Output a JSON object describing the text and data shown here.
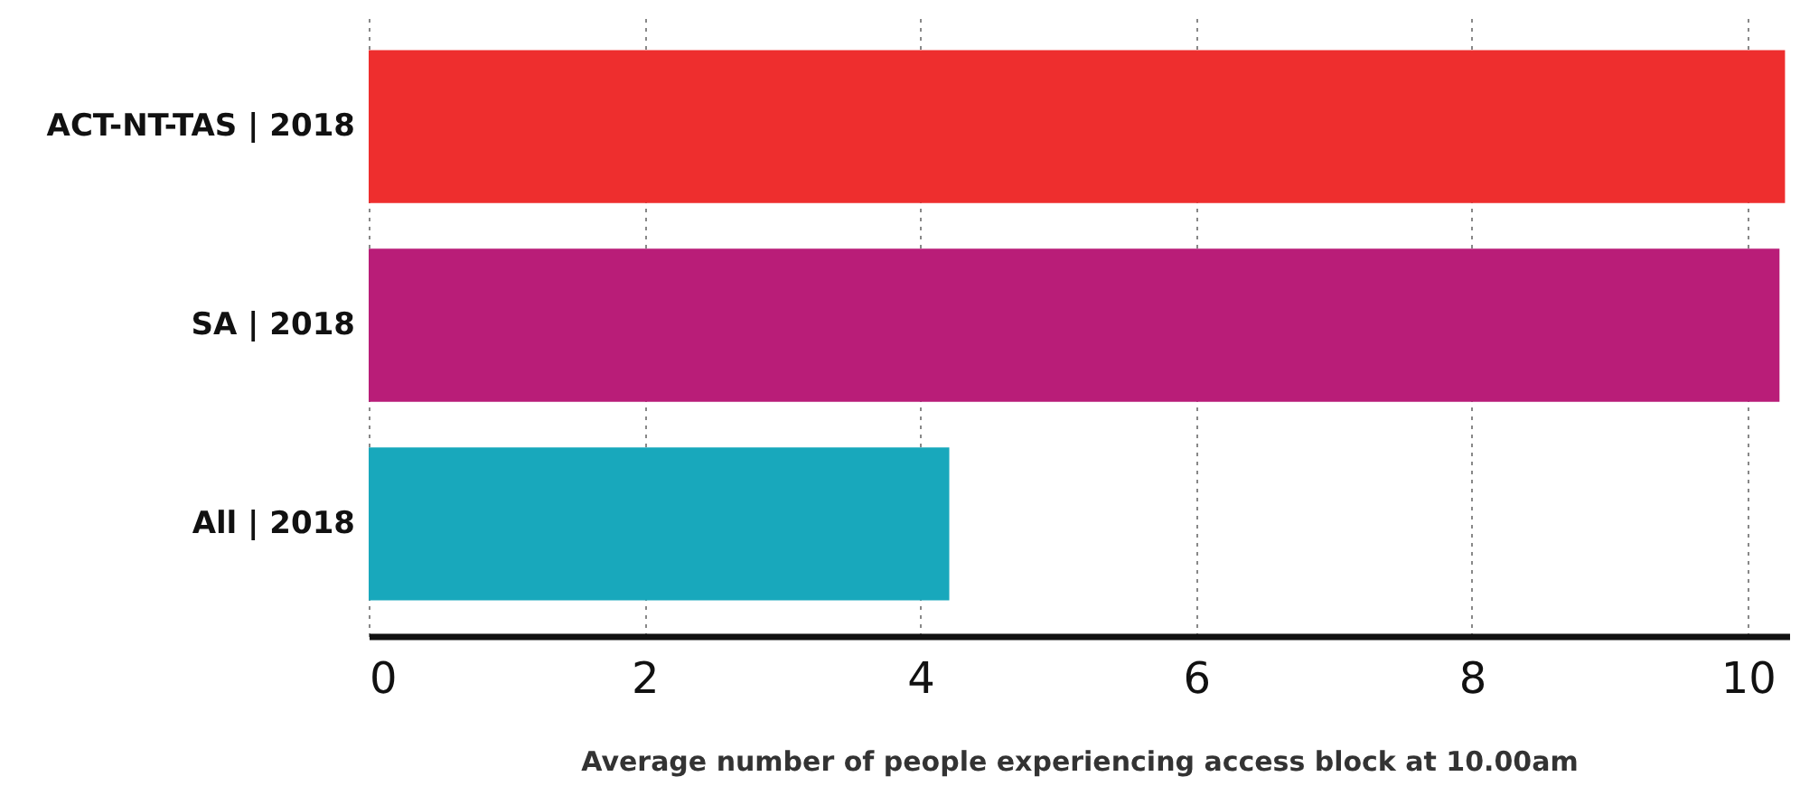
{
  "chart_data": {
    "type": "bar",
    "orientation": "horizontal",
    "xlabel": "Average number of people experiencing access block at 10.00am",
    "categories": [
      "ACT-NT-TAS | 2018",
      "SA | 2018",
      "All | 2018"
    ],
    "values": [
      10.27,
      10.23,
      4.21
    ],
    "colors": [
      "#ee2e2e",
      "#b91d78",
      "#18a8bc"
    ],
    "xlim": [
      0,
      10.3
    ],
    "xticks": [
      0,
      2,
      4,
      6,
      8,
      10
    ],
    "grid": "x"
  }
}
